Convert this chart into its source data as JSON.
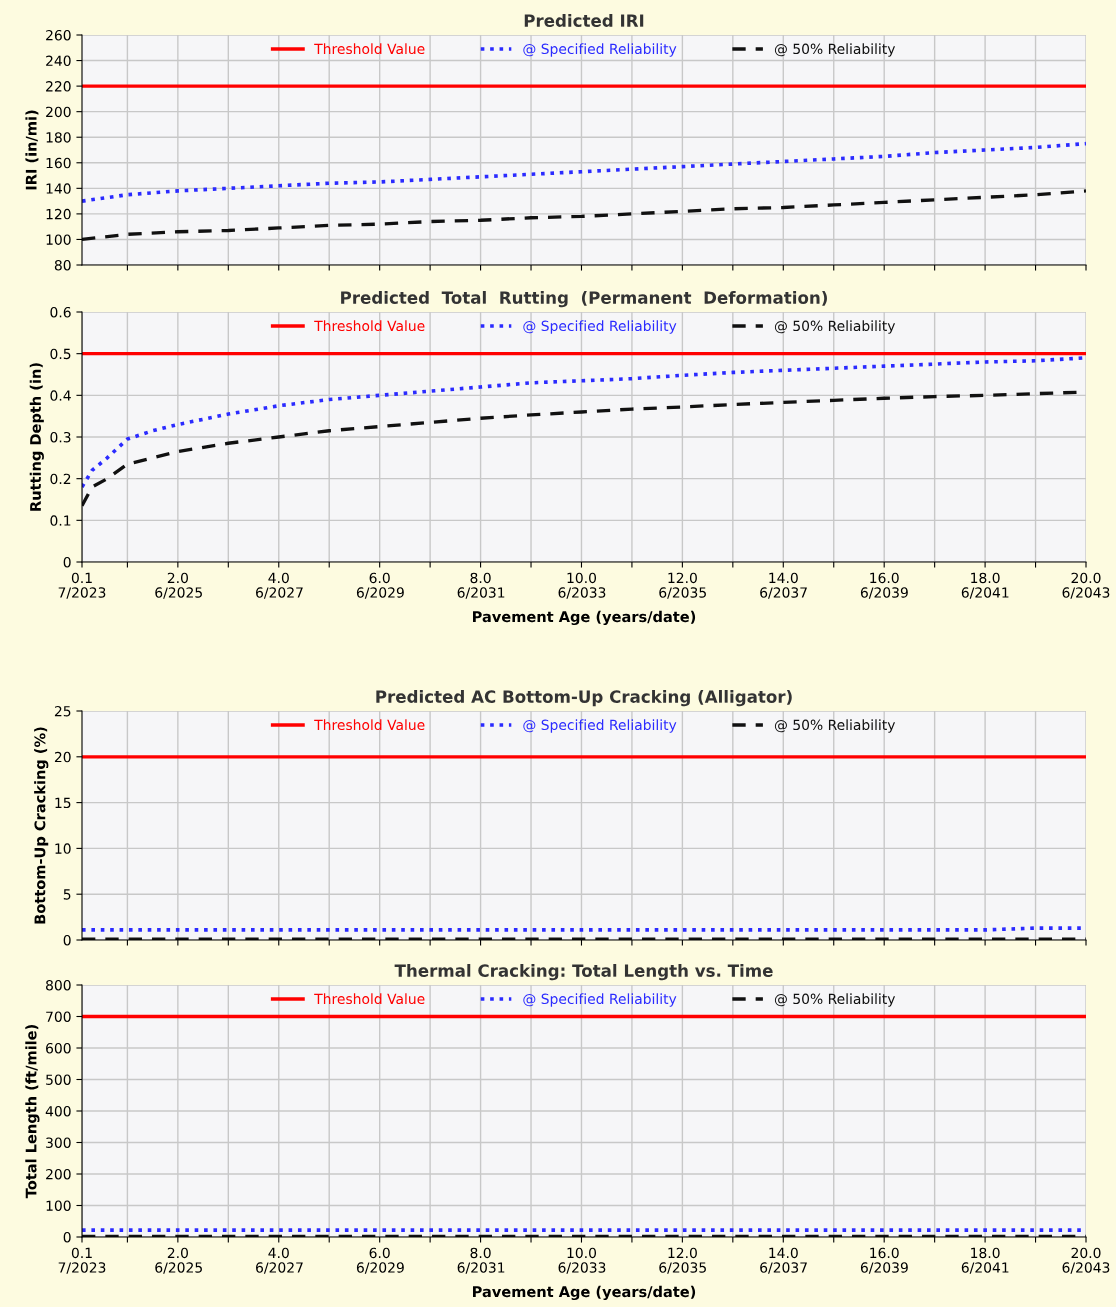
{
  "chart_data": [
    {
      "type": "line",
      "title": "Predicted IRI",
      "ylabel": "IRI (in/mi)",
      "xlim": [
        0.1,
        20
      ],
      "ylim": [
        80,
        260
      ],
      "yticks": [
        80,
        100,
        120,
        140,
        160,
        180,
        200,
        220,
        240,
        260
      ],
      "xticks": [
        1,
        2,
        3,
        4,
        5,
        6,
        7,
        8,
        9,
        10,
        11,
        12,
        13,
        14,
        15,
        16,
        17,
        18,
        19,
        20
      ],
      "tick_labels": "y",
      "grid": true,
      "legend": "top",
      "marker": "none",
      "x": [
        0.1,
        1,
        2,
        3,
        4,
        5,
        6,
        7,
        8,
        9,
        10,
        11,
        12,
        13,
        14,
        15,
        16,
        17,
        18,
        19,
        20
      ],
      "series": [
        {
          "name": "Threshold Value",
          "color": "#ff0000",
          "line_style": "solid",
          "values": [
            220,
            220,
            220,
            220,
            220,
            220,
            220,
            220,
            220,
            220,
            220,
            220,
            220,
            220,
            220,
            220,
            220,
            220,
            220,
            220,
            220
          ]
        },
        {
          "name": "@ Specified Reliability",
          "color": "#2b2bff",
          "line_style": "dotted",
          "values": [
            130,
            135,
            138,
            140,
            142,
            144,
            145,
            147,
            149,
            151,
            153,
            155,
            157,
            159,
            161,
            163,
            165,
            168,
            170,
            172,
            175
          ]
        },
        {
          "name": "@ 50% Reliability",
          "color": "#111111",
          "line_style": "dashed",
          "values": [
            100,
            104,
            106,
            107,
            109,
            111,
            112,
            114,
            115,
            117,
            118,
            120,
            122,
            124,
            125,
            127,
            129,
            131,
            133,
            135,
            138
          ]
        }
      ]
    },
    {
      "type": "line",
      "title": "Predicted  Total  Rutting  (Permanent  Deformation)",
      "ylabel": "Rutting Depth (in)",
      "xlabel": "Pavement Age (years/date)",
      "xlim": [
        0.1,
        20
      ],
      "ylim": [
        0,
        0.6
      ],
      "yticks": [
        0,
        0.1,
        0.2,
        0.3,
        0.4,
        0.5,
        0.6
      ],
      "xticks": [
        0.1,
        {
          "value": 1,
          "label": null
        },
        {
          "value": 2,
          "label": "2.0"
        },
        {
          "value": 3,
          "label": null
        },
        {
          "value": 4,
          "label": "4.0"
        },
        {
          "value": 5,
          "label": null
        },
        {
          "value": 6,
          "label": "6.0"
        },
        {
          "value": 7,
          "label": null
        },
        {
          "value": 8,
          "label": "8.0"
        },
        {
          "value": 9,
          "label": null
        },
        {
          "value": 10,
          "label": "10.0"
        },
        {
          "value": 11,
          "label": null
        },
        {
          "value": 12,
          "label": "12.0"
        },
        {
          "value": 13,
          "label": null
        },
        {
          "value": 14,
          "label": "14.0"
        },
        {
          "value": 15,
          "label": null
        },
        {
          "value": 16,
          "label": "16.0"
        },
        {
          "value": 17,
          "label": null
        },
        {
          "value": 18,
          "label": "18.0"
        },
        {
          "value": 19,
          "label": null
        },
        {
          "value": 20,
          "label": "20.0"
        }
      ],
      "x2lim": [
        "2023-07",
        "2043-06"
      ],
      "x2ticks": [
        {
          "value": "2023-07",
          "label": "7/2023"
        },
        {
          "value": "2025-06",
          "label": "6/2025"
        },
        {
          "value": "2027-06",
          "label": "6/2027"
        },
        {
          "value": "2029-06",
          "label": "6/2029"
        },
        {
          "value": "2031-06",
          "label": "6/2031"
        },
        {
          "value": "2033-06",
          "label": "6/2033"
        },
        {
          "value": "2035-06",
          "label": "6/2035"
        },
        {
          "value": "2037-06",
          "label": "6/2037"
        },
        {
          "value": "2039-06",
          "label": "6/2039"
        },
        {
          "value": "2041-06",
          "label": "6/2041"
        },
        {
          "value": "2043-06",
          "label": "6/2043"
        }
      ],
      "grid": true,
      "legend": "top",
      "marker": "none",
      "x": [
        0.1,
        0.3,
        0.6,
        1,
        1.5,
        2,
        3,
        4,
        5,
        6,
        7,
        8,
        9,
        10,
        11,
        12,
        13,
        14,
        15,
        16,
        17,
        18,
        19,
        20
      ],
      "series": [
        {
          "name": "Threshold Value",
          "color": "#ff0000",
          "line_style": "solid",
          "values": [
            0.5,
            0.5,
            0.5,
            0.5,
            0.5,
            0.5,
            0.5,
            0.5,
            0.5,
            0.5,
            0.5,
            0.5,
            0.5,
            0.5,
            0.5,
            0.5,
            0.5,
            0.5,
            0.5,
            0.5,
            0.5,
            0.5,
            0.5,
            0.5
          ]
        },
        {
          "name": "@ Specified Reliability",
          "color": "#2b2bff",
          "line_style": "dotted",
          "values": [
            0.18,
            0.22,
            0.25,
            0.295,
            0.315,
            0.33,
            0.355,
            0.375,
            0.39,
            0.4,
            0.41,
            0.42,
            0.43,
            0.435,
            0.44,
            0.448,
            0.455,
            0.46,
            0.465,
            0.47,
            0.475,
            0.48,
            0.483,
            0.49
          ]
        },
        {
          "name": "@ 50% Reliability",
          "color": "#111111",
          "line_style": "dashed",
          "values": [
            0.135,
            0.18,
            0.2,
            0.235,
            0.25,
            0.265,
            0.285,
            0.3,
            0.315,
            0.325,
            0.335,
            0.345,
            0.353,
            0.36,
            0.367,
            0.372,
            0.378,
            0.383,
            0.388,
            0.393,
            0.397,
            0.4,
            0.404,
            0.408
          ]
        }
      ]
    },
    {
      "type": "line",
      "title": "Predicted AC Bottom-Up Cracking (Alligator)",
      "ylabel": "Bottom-Up Cracking (%)",
      "xlim": [
        0.1,
        20
      ],
      "ylim": [
        0,
        25
      ],
      "yticks": [
        0,
        5,
        10,
        15,
        20,
        25
      ],
      "xticks": [
        1,
        2,
        3,
        4,
        5,
        6,
        7,
        8,
        9,
        10,
        11,
        12,
        13,
        14,
        15,
        16,
        17,
        18,
        19,
        20
      ],
      "tick_labels": "y",
      "grid": true,
      "legend": "top",
      "marker": "none",
      "x": [
        0.1,
        5,
        10,
        15,
        18,
        19,
        20
      ],
      "series": [
        {
          "name": "Threshold Value",
          "color": "#ff0000",
          "line_style": "solid",
          "values": [
            20,
            20,
            20,
            20,
            20,
            20,
            20
          ]
        },
        {
          "name": "@ Specified Reliability",
          "color": "#2b2bff",
          "line_style": "dotted",
          "values": [
            1.1,
            1.1,
            1.1,
            1.1,
            1.1,
            1.3,
            1.3
          ]
        },
        {
          "name": "@ 50% Reliability",
          "color": "#111111",
          "line_style": "dashed",
          "values": [
            0.1,
            0.1,
            0.1,
            0.1,
            0.1,
            0.1,
            0.1
          ]
        }
      ]
    },
    {
      "type": "line",
      "title": "Thermal Cracking: Total Length vs. Time",
      "ylabel": "Total Length (ft/mile)",
      "xlabel": "Pavement Age (years/date)",
      "xlim": [
        0.1,
        20
      ],
      "ylim": [
        0,
        800
      ],
      "yticks": [
        0,
        100,
        200,
        300,
        400,
        500,
        600,
        700,
        800
      ],
      "xticks": [
        0.1,
        {
          "value": 1,
          "label": null
        },
        {
          "value": 2,
          "label": "2.0"
        },
        {
          "value": 3,
          "label": null
        },
        {
          "value": 4,
          "label": "4.0"
        },
        {
          "value": 5,
          "label": null
        },
        {
          "value": 6,
          "label": "6.0"
        },
        {
          "value": 7,
          "label": null
        },
        {
          "value": 8,
          "label": "8.0"
        },
        {
          "value": 9,
          "label": null
        },
        {
          "value": 10,
          "label": "10.0"
        },
        {
          "value": 11,
          "label": null
        },
        {
          "value": 12,
          "label": "12.0"
        },
        {
          "value": 13,
          "label": null
        },
        {
          "value": 14,
          "label": "14.0"
        },
        {
          "value": 15,
          "label": null
        },
        {
          "value": 16,
          "label": "16.0"
        },
        {
          "value": 17,
          "label": null
        },
        {
          "value": 18,
          "label": "18.0"
        },
        {
          "value": 19,
          "label": null
        },
        {
          "value": 20,
          "label": "20.0"
        }
      ],
      "x2lim": [
        "2023-07",
        "2043-06"
      ],
      "x2ticks": [
        {
          "value": "2023-07",
          "label": "7/2023"
        },
        {
          "value": "2025-06",
          "label": "6/2025"
        },
        {
          "value": "2027-06",
          "label": "6/2027"
        },
        {
          "value": "2029-06",
          "label": "6/2029"
        },
        {
          "value": "2031-06",
          "label": "6/2031"
        },
        {
          "value": "2033-06",
          "label": "6/2033"
        },
        {
          "value": "2035-06",
          "label": "6/2035"
        },
        {
          "value": "2037-06",
          "label": "6/2037"
        },
        {
          "value": "2039-06",
          "label": "6/2039"
        },
        {
          "value": "2041-06",
          "label": "6/2041"
        },
        {
          "value": "2043-06",
          "label": "6/2043"
        }
      ],
      "grid": true,
      "legend": "top",
      "marker": "none",
      "x": [
        0.1,
        5,
        10,
        15,
        20
      ],
      "series": [
        {
          "name": "Threshold Value",
          "color": "#ff0000",
          "line_style": "solid",
          "values": [
            700,
            700,
            700,
            700,
            700
          ]
        },
        {
          "name": "@ Specified Reliability",
          "color": "#2b2bff",
          "line_style": "dotted",
          "values": [
            22,
            22,
            22,
            22,
            22
          ]
        },
        {
          "name": "@ 50% Reliability",
          "color": "#111111",
          "line_style": "dashed",
          "values": [
            2,
            2,
            2,
            2,
            2
          ]
        }
      ]
    }
  ]
}
